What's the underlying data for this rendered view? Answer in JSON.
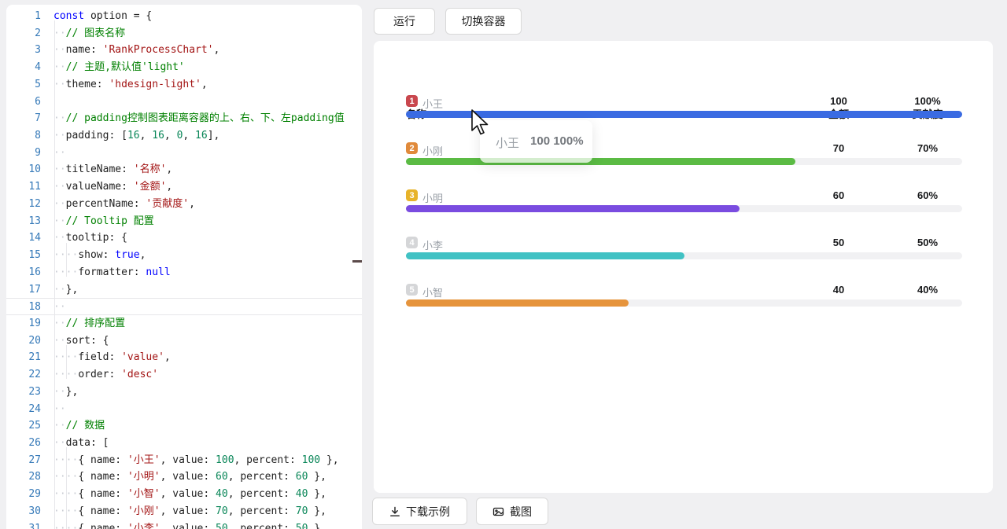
{
  "toolbar": {
    "run_label": "运行",
    "switch_label": "切换容器"
  },
  "footer": {
    "download_label": "下载示例",
    "screenshot_label": "截图"
  },
  "editor": {
    "lines": [
      {
        "n": 1,
        "ws": 0,
        "tokens": [
          [
            "k",
            "const"
          ],
          [
            "p",
            " option = {"
          ]
        ]
      },
      {
        "n": 2,
        "ws": 2,
        "tokens": [
          [
            "c",
            "// 图表名称"
          ]
        ]
      },
      {
        "n": 3,
        "ws": 2,
        "tokens": [
          [
            "p",
            "name: "
          ],
          [
            "s",
            "'RankProcessChart'"
          ],
          [
            "p",
            ","
          ]
        ]
      },
      {
        "n": 4,
        "ws": 2,
        "tokens": [
          [
            "c",
            "// 主题,默认值'light'"
          ]
        ]
      },
      {
        "n": 5,
        "ws": 2,
        "tokens": [
          [
            "p",
            "theme: "
          ],
          [
            "s",
            "'hdesign-light'"
          ],
          [
            "p",
            ","
          ]
        ]
      },
      {
        "n": 6,
        "ws": 0,
        "tokens": []
      },
      {
        "n": 7,
        "ws": 2,
        "tokens": [
          [
            "c",
            "// padding控制图表距离容器的上、右、下、左padding值"
          ]
        ]
      },
      {
        "n": 8,
        "ws": 2,
        "tokens": [
          [
            "p",
            "padding: ["
          ],
          [
            "n",
            "16"
          ],
          [
            "p",
            ", "
          ],
          [
            "n",
            "16"
          ],
          [
            "p",
            ", "
          ],
          [
            "n",
            "0"
          ],
          [
            "p",
            ", "
          ],
          [
            "n",
            "16"
          ],
          [
            "p",
            "],"
          ]
        ]
      },
      {
        "n": 9,
        "ws": 2,
        "tokens": []
      },
      {
        "n": 10,
        "ws": 2,
        "tokens": [
          [
            "p",
            "titleName: "
          ],
          [
            "s",
            "'名称'"
          ],
          [
            "p",
            ","
          ]
        ]
      },
      {
        "n": 11,
        "ws": 2,
        "tokens": [
          [
            "p",
            "valueName: "
          ],
          [
            "s",
            "'金额'"
          ],
          [
            "p",
            ","
          ]
        ]
      },
      {
        "n": 12,
        "ws": 2,
        "tokens": [
          [
            "p",
            "percentName: "
          ],
          [
            "s",
            "'贡献度'"
          ],
          [
            "p",
            ","
          ]
        ]
      },
      {
        "n": 13,
        "ws": 2,
        "tokens": [
          [
            "c",
            "// Tooltip 配置"
          ]
        ]
      },
      {
        "n": 14,
        "ws": 2,
        "tokens": [
          [
            "p",
            "tooltip: {"
          ]
        ]
      },
      {
        "n": 15,
        "ws": 4,
        "tokens": [
          [
            "p",
            "show: "
          ],
          [
            "k",
            "true"
          ],
          [
            "p",
            ","
          ]
        ]
      },
      {
        "n": 16,
        "ws": 4,
        "tokens": [
          [
            "p",
            "formatter: "
          ],
          [
            "k",
            "null"
          ]
        ]
      },
      {
        "n": 17,
        "ws": 2,
        "tokens": [
          [
            "p",
            "},"
          ]
        ]
      },
      {
        "n": 18,
        "ws": 2,
        "tokens": [],
        "current": true
      },
      {
        "n": 19,
        "ws": 2,
        "tokens": [
          [
            "c",
            "// 排序配置"
          ]
        ]
      },
      {
        "n": 20,
        "ws": 2,
        "tokens": [
          [
            "p",
            "sort: {"
          ]
        ]
      },
      {
        "n": 21,
        "ws": 4,
        "tokens": [
          [
            "p",
            "field: "
          ],
          [
            "s",
            "'value'"
          ],
          [
            "p",
            ","
          ]
        ]
      },
      {
        "n": 22,
        "ws": 4,
        "tokens": [
          [
            "p",
            "order: "
          ],
          [
            "s",
            "'desc'"
          ]
        ]
      },
      {
        "n": 23,
        "ws": 2,
        "tokens": [
          [
            "p",
            "},"
          ]
        ]
      },
      {
        "n": 24,
        "ws": 2,
        "tokens": []
      },
      {
        "n": 25,
        "ws": 2,
        "tokens": [
          [
            "c",
            "// 数据"
          ]
        ]
      },
      {
        "n": 26,
        "ws": 2,
        "tokens": [
          [
            "p",
            "data: ["
          ]
        ]
      },
      {
        "n": 27,
        "ws": 4,
        "tokens": [
          [
            "p",
            "{ name: "
          ],
          [
            "s",
            "'小王'"
          ],
          [
            "p",
            ", value: "
          ],
          [
            "n",
            "100"
          ],
          [
            "p",
            ", percent: "
          ],
          [
            "n",
            "100"
          ],
          [
            "p",
            " },"
          ]
        ]
      },
      {
        "n": 28,
        "ws": 4,
        "tokens": [
          [
            "p",
            "{ name: "
          ],
          [
            "s",
            "'小明'"
          ],
          [
            "p",
            ", value: "
          ],
          [
            "n",
            "60"
          ],
          [
            "p",
            ", percent: "
          ],
          [
            "n",
            "60"
          ],
          [
            "p",
            " },"
          ]
        ]
      },
      {
        "n": 29,
        "ws": 4,
        "tokens": [
          [
            "p",
            "{ name: "
          ],
          [
            "s",
            "'小智'"
          ],
          [
            "p",
            ", value: "
          ],
          [
            "n",
            "40"
          ],
          [
            "p",
            ", percent: "
          ],
          [
            "n",
            "40"
          ],
          [
            "p",
            " },"
          ]
        ]
      },
      {
        "n": 30,
        "ws": 4,
        "tokens": [
          [
            "p",
            "{ name: "
          ],
          [
            "s",
            "'小刚'"
          ],
          [
            "p",
            ", value: "
          ],
          [
            "n",
            "70"
          ],
          [
            "p",
            ", percent: "
          ],
          [
            "n",
            "70"
          ],
          [
            "p",
            " },"
          ]
        ]
      },
      {
        "n": 31,
        "ws": 4,
        "tokens": [
          [
            "p",
            "{ name: "
          ],
          [
            "s",
            "'小李'"
          ],
          [
            "p",
            ", value: "
          ],
          [
            "n",
            "50"
          ],
          [
            "p",
            ", percent: "
          ],
          [
            "n",
            "50"
          ],
          [
            "p",
            " }"
          ]
        ]
      }
    ]
  },
  "preview": {
    "columns": {
      "name": "名称",
      "value": "金额",
      "percent": "贡献度"
    },
    "rows": [
      {
        "rank": "1",
        "name": "小王",
        "value": "100",
        "percent": "100%",
        "pct": 100,
        "bar_color": "#3a6be2",
        "badge_color": "#c9474e"
      },
      {
        "rank": "2",
        "name": "小刚",
        "value": "70",
        "percent": "70%",
        "pct": 70,
        "bar_color": "#5bbb44",
        "badge_color": "#e08a3b"
      },
      {
        "rank": "3",
        "name": "小明",
        "value": "60",
        "percent": "60%",
        "pct": 60,
        "bar_color": "#7a4ce0",
        "badge_color": "#e7b32a"
      },
      {
        "rank": "4",
        "name": "小李",
        "value": "50",
        "percent": "50%",
        "pct": 50,
        "bar_color": "#41c2c4",
        "badge_color": "#d5d6d8"
      },
      {
        "rank": "5",
        "name": "小智",
        "value": "40",
        "percent": "40%",
        "pct": 40,
        "bar_color": "#e6943c",
        "badge_color": "#d5d6d8"
      }
    ],
    "tooltip": {
      "name": "小王",
      "value": "100 100%"
    }
  }
}
